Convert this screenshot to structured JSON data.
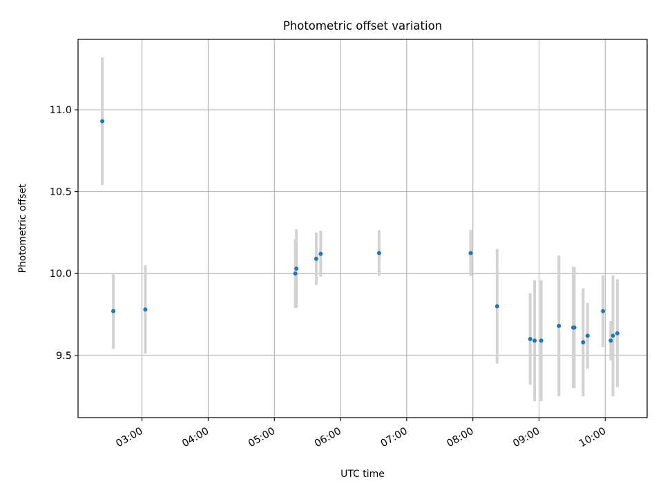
{
  "chart_data": {
    "type": "scatter",
    "title": "Photometric offset variation",
    "xlabel": "UTC time",
    "ylabel": "Photometric offset",
    "x_ticks": [
      "03:00",
      "04:00",
      "05:00",
      "06:00",
      "07:00",
      "08:00",
      "09:00",
      "10:00"
    ],
    "y_ticks": [
      "9.5",
      "10.0",
      "10.5",
      "11.0"
    ],
    "xlim": [
      "02:02",
      "10:38"
    ],
    "ylim": [
      9.12,
      11.43
    ],
    "grid": true,
    "points": [
      {
        "x": "02:24",
        "y": 10.93,
        "err": 0.39
      },
      {
        "x": "02:34",
        "y": 9.77,
        "err": 0.23
      },
      {
        "x": "03:03",
        "y": 9.78,
        "err": 0.27
      },
      {
        "x": "05:19",
        "y": 10.0,
        "err": 0.21
      },
      {
        "x": "05:20",
        "y": 10.03,
        "err": 0.24
      },
      {
        "x": "05:38",
        "y": 10.09,
        "err": 0.16
      },
      {
        "x": "05:42",
        "y": 10.12,
        "err": 0.14
      },
      {
        "x": "06:35",
        "y": 10.125,
        "err": 0.14
      },
      {
        "x": "07:58",
        "y": 10.125,
        "err": 0.14
      },
      {
        "x": "08:22",
        "y": 9.8,
        "err": 0.35
      },
      {
        "x": "08:52",
        "y": 9.6,
        "err": 0.28
      },
      {
        "x": "08:56",
        "y": 9.59,
        "err": 0.37
      },
      {
        "x": "09:02",
        "y": 9.59,
        "err": 0.37
      },
      {
        "x": "09:18",
        "y": 9.68,
        "err": 0.43
      },
      {
        "x": "09:31",
        "y": 9.67,
        "err": 0.37
      },
      {
        "x": "09:32",
        "y": 9.67,
        "err": 0.37
      },
      {
        "x": "09:40",
        "y": 9.58,
        "err": 0.33
      },
      {
        "x": "09:44",
        "y": 9.62,
        "err": 0.2
      },
      {
        "x": "09:58",
        "y": 9.77,
        "err": 0.22
      },
      {
        "x": "10:05",
        "y": 9.59,
        "err": 0.12
      },
      {
        "x": "10:07",
        "y": 9.62,
        "err": 0.37
      },
      {
        "x": "10:11",
        "y": 9.635,
        "err": 0.33
      }
    ],
    "colors": {
      "marker": "#1f77b4",
      "errorbar": "#d3d3d3",
      "grid": "#b0b0b0",
      "axes": "#000000"
    }
  }
}
